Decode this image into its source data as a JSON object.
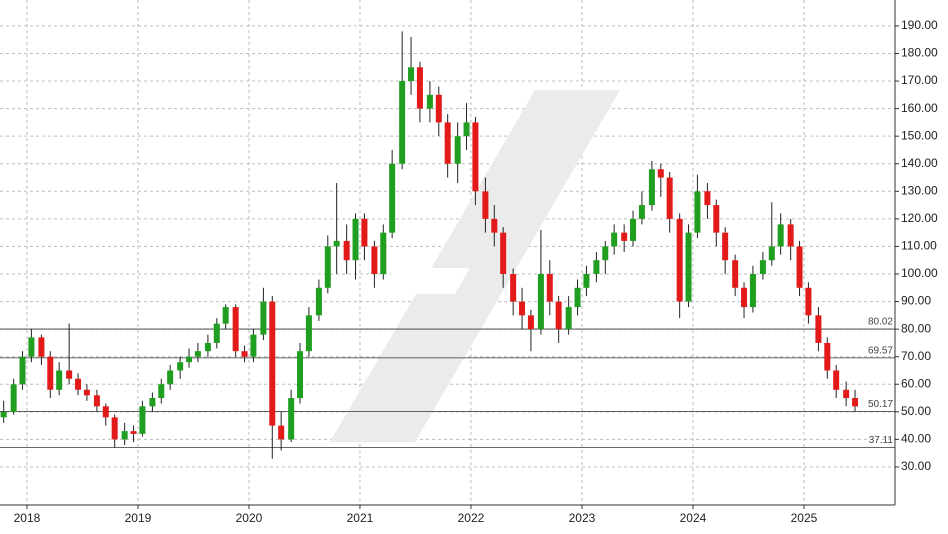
{
  "chart_data": {
    "type": "candlestick",
    "up_color": "#1f9e1f",
    "down_color": "#e31a1a",
    "grid": true,
    "xlim": [
      2017.757,
      2025.82
    ],
    "ylim": [
      16.2,
      199.4
    ],
    "xticks": [
      2018,
      2019,
      2020,
      2021,
      2022,
      2023,
      2024,
      2025
    ],
    "yticks": [
      {
        "value": 30,
        "label": "30.00"
      },
      {
        "value": 40,
        "label": "40.00"
      },
      {
        "value": 50,
        "label": "50.00"
      },
      {
        "value": 60,
        "label": "60.00"
      },
      {
        "value": 70,
        "label": "70.00"
      },
      {
        "value": 80,
        "label": "80.00"
      },
      {
        "value": 90,
        "label": "90.00"
      },
      {
        "value": 100,
        "label": "100.00"
      },
      {
        "value": 110,
        "label": "110.00"
      },
      {
        "value": 120,
        "label": "120.00"
      },
      {
        "value": 130,
        "label": "130.00"
      },
      {
        "value": 140,
        "label": "140.00"
      },
      {
        "value": 150,
        "label": "150.00"
      },
      {
        "value": 160,
        "label": "160.00"
      },
      {
        "value": 170,
        "label": "170.00"
      },
      {
        "value": 180,
        "label": "180.00"
      },
      {
        "value": 190,
        "label": "190.00"
      }
    ],
    "levels": [
      80.02,
      69.57,
      50.17,
      37.11
    ],
    "x": [
      2017.79,
      2017.88,
      2017.96,
      2018.04,
      2018.13,
      2018.21,
      2018.29,
      2018.38,
      2018.46,
      2018.54,
      2018.63,
      2018.71,
      2018.79,
      2018.88,
      2018.96,
      2019.04,
      2019.13,
      2019.21,
      2019.29,
      2019.38,
      2019.46,
      2019.54,
      2019.63,
      2019.71,
      2019.79,
      2019.88,
      2019.96,
      2020.04,
      2020.13,
      2020.21,
      2020.29,
      2020.38,
      2020.46,
      2020.54,
      2020.63,
      2020.71,
      2020.79,
      2020.88,
      2020.96,
      2021.04,
      2021.13,
      2021.21,
      2021.29,
      2021.38,
      2021.46,
      2021.54,
      2021.63,
      2021.71,
      2021.79,
      2021.88,
      2021.96,
      2022.04,
      2022.13,
      2022.21,
      2022.29,
      2022.38,
      2022.46,
      2022.54,
      2022.63,
      2022.71,
      2022.79,
      2022.88,
      2022.96,
      2023.04,
      2023.13,
      2023.21,
      2023.29,
      2023.38,
      2023.46,
      2023.54,
      2023.63,
      2023.71,
      2023.79,
      2023.88,
      2023.96,
      2024.04,
      2024.13,
      2024.21,
      2024.29,
      2024.38,
      2024.46,
      2024.54,
      2024.63,
      2024.71,
      2024.79,
      2024.88,
      2024.96,
      2025.04,
      2025.13,
      2025.21,
      2025.29,
      2025.38,
      2025.46
    ],
    "open": [
      48,
      50,
      60,
      70,
      77,
      70,
      58,
      65,
      62,
      58,
      56,
      52,
      48,
      40,
      43,
      42,
      52,
      55,
      60,
      65,
      68,
      70,
      72,
      75,
      82,
      88,
      72,
      70,
      78,
      90,
      45,
      40,
      55,
      72,
      85,
      95,
      110,
      112,
      105,
      120,
      110,
      100,
      115,
      140,
      170,
      175,
      160,
      165,
      155,
      140,
      150,
      155,
      130,
      120,
      115,
      100,
      90,
      85,
      80,
      100,
      90,
      80,
      88,
      95,
      100,
      105,
      110,
      115,
      112,
      120,
      125,
      138,
      135,
      120,
      90,
      115,
      130,
      125,
      115,
      105,
      95,
      88,
      100,
      105,
      110,
      118,
      110,
      95,
      85,
      75,
      65,
      58,
      55
    ],
    "high": [
      54,
      62,
      72,
      80,
      78,
      72,
      68,
      82,
      64,
      60,
      58,
      53,
      49,
      46,
      45,
      54,
      57,
      62,
      67,
      70,
      73,
      75,
      78,
      84,
      89,
      89,
      74,
      80,
      95,
      92,
      50,
      58,
      75,
      88,
      98,
      114,
      133,
      118,
      122,
      122,
      112,
      118,
      145,
      188,
      186,
      177,
      170,
      168,
      158,
      155,
      162,
      157,
      135,
      125,
      117,
      102,
      95,
      87,
      116,
      105,
      92,
      92,
      98,
      103,
      108,
      112,
      118,
      118,
      123,
      130,
      141,
      140,
      137,
      122,
      118,
      136,
      133,
      127,
      117,
      107,
      97,
      103,
      108,
      126,
      122,
      120,
      112,
      97,
      88,
      77,
      67,
      61,
      58
    ],
    "low": [
      46,
      49,
      58,
      68,
      67,
      55,
      56,
      60,
      56,
      54,
      50,
      45,
      37,
      38,
      39,
      41,
      50,
      53,
      58,
      62,
      66,
      68,
      70,
      73,
      80,
      70,
      68,
      68,
      76,
      33,
      36,
      39,
      53,
      70,
      83,
      93,
      100,
      100,
      98,
      105,
      95,
      98,
      113,
      138,
      165,
      155,
      155,
      150,
      135,
      133,
      145,
      125,
      115,
      110,
      95,
      85,
      80,
      72,
      78,
      85,
      75,
      78,
      85,
      92,
      97,
      100,
      107,
      108,
      110,
      118,
      123,
      128,
      115,
      84,
      88,
      113,
      120,
      110,
      100,
      92,
      84,
      86,
      98,
      103,
      107,
      105,
      92,
      82,
      72,
      62,
      55,
      52,
      50
    ],
    "close": [
      50,
      60,
      70,
      77,
      70,
      58,
      65,
      62,
      58,
      56,
      52,
      48,
      40,
      43,
      42,
      52,
      55,
      60,
      65,
      68,
      70,
      72,
      75,
      82,
      88,
      72,
      70,
      78,
      90,
      45,
      40,
      55,
      72,
      85,
      95,
      110,
      112,
      105,
      120,
      110,
      100,
      115,
      140,
      170,
      175,
      160,
      165,
      155,
      140,
      150,
      155,
      130,
      120,
      115,
      100,
      90,
      85,
      80,
      100,
      90,
      80,
      88,
      95,
      100,
      105,
      110,
      115,
      112,
      120,
      125,
      138,
      135,
      120,
      90,
      115,
      130,
      125,
      115,
      105,
      95,
      88,
      100,
      105,
      110,
      118,
      110,
      95,
      85,
      75,
      65,
      58,
      55,
      52
    ]
  }
}
